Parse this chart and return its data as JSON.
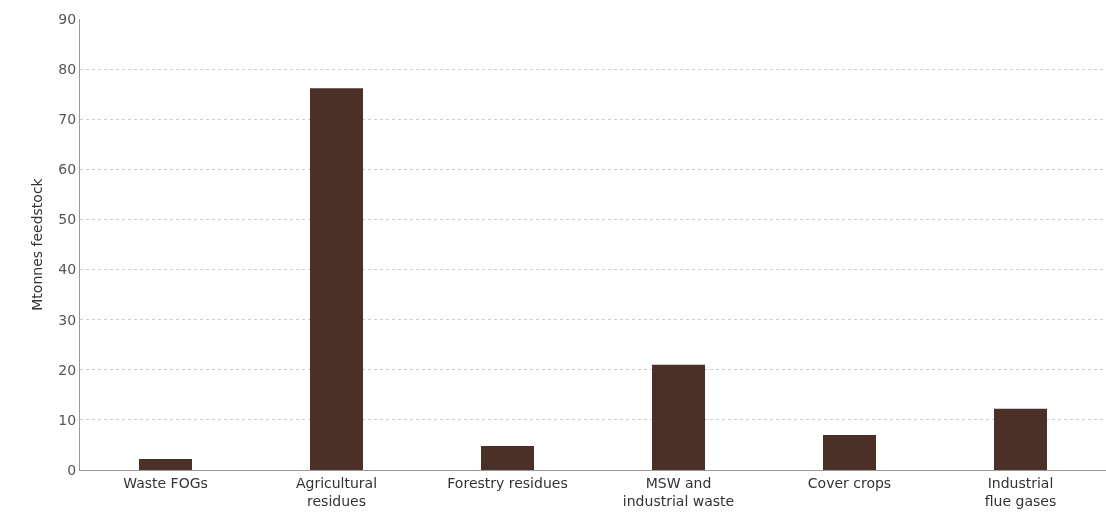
{
  "chart_data": {
    "type": "bar",
    "ylabel": "Mtonnes feedstock",
    "categories": [
      "Waste FOGs",
      "Agricultural\nresidues",
      "Forestry residues",
      "MSW and\nindustrial waste",
      "Cover crops",
      "Industrial\nflue gases"
    ],
    "values": [
      2.2,
      76.2,
      4.8,
      21.0,
      7.0,
      12.2
    ],
    "color": "#4b3028",
    "ylim": [
      0,
      90
    ],
    "yticks": [
      0,
      10,
      20,
      30,
      40,
      50,
      60,
      70,
      80,
      90
    ],
    "grid": "y"
  }
}
